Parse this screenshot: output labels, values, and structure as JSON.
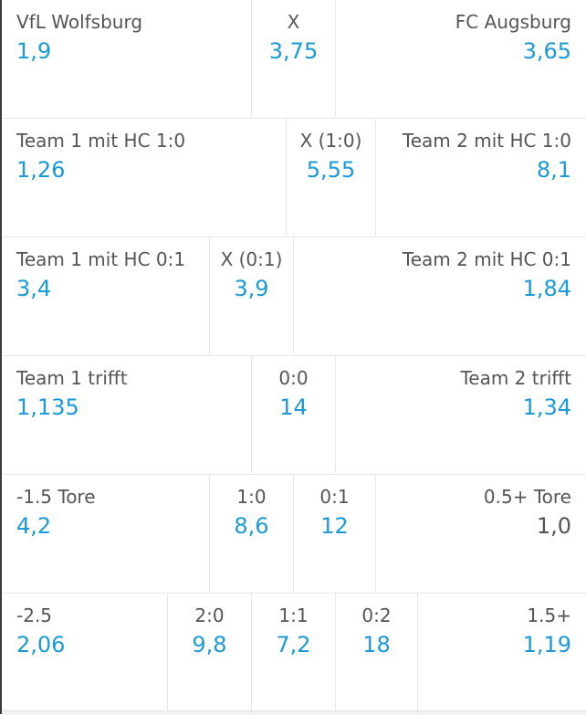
{
  "markets": [
    {
      "cells": [
        {
          "label": "VfL Wolfsburg",
          "odd": "1,9"
        },
        {
          "label": "X",
          "odd": "3,75"
        },
        {
          "label": "FC Augsburg",
          "odd": "3,65"
        }
      ]
    },
    {
      "cells": [
        {
          "label": "Team 1 mit HC 1:0",
          "odd": "1,26"
        },
        {
          "label": "X (1:0)",
          "odd": "5,55"
        },
        {
          "label": "Team 2 mit HC 1:0",
          "odd": "8,1"
        }
      ]
    },
    {
      "cells": [
        {
          "label": "Team 1 mit HC 0:1",
          "odd": "3,4"
        },
        {
          "label": "X (0:1)",
          "odd": "3,9"
        },
        {
          "label": "Team 2 mit HC 0:1",
          "odd": "1,84"
        }
      ]
    },
    {
      "cells": [
        {
          "label": "Team 1 trifft",
          "odd": "1,135"
        },
        {
          "label": "0:0",
          "odd": "14"
        },
        {
          "label": "Team 2 trifft",
          "odd": "1,34"
        }
      ]
    },
    {
      "cells": [
        {
          "label": "-1.5 Tore",
          "odd": "4,2"
        },
        {
          "label": "1:0",
          "odd": "8,6"
        },
        {
          "label": "0:1",
          "odd": "12"
        },
        {
          "label": "0.5+ Tore",
          "odd": "1,0"
        }
      ]
    },
    {
      "cells": [
        {
          "label": "-2.5",
          "odd": "2,06"
        },
        {
          "label": "2:0",
          "odd": "9,8"
        },
        {
          "label": "1:1",
          "odd": "7,2"
        },
        {
          "label": "0:2",
          "odd": "18"
        },
        {
          "label": "1.5+",
          "odd": "1,19"
        }
      ]
    }
  ],
  "colors": {
    "odd_active": "#1a9ad6",
    "odd_inactive": "#555555",
    "label": "#555555",
    "divider": "#e6e6e6"
  }
}
